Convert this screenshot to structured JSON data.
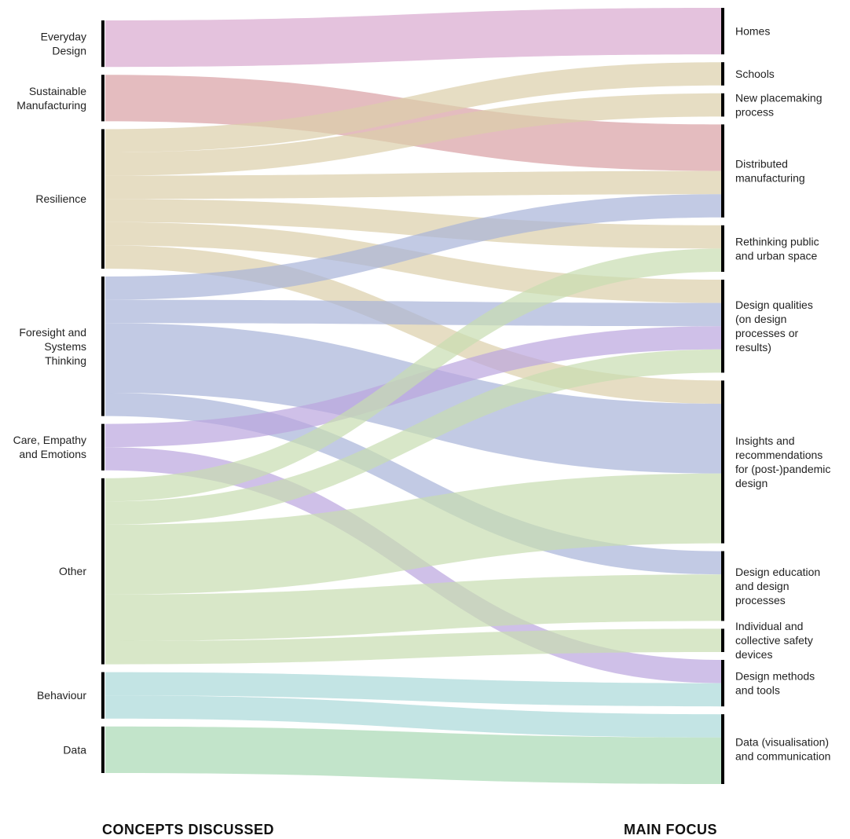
{
  "left_title": "CONCEPTS DISCUSSED",
  "right_title": "MAIN FOCUS",
  "colors": {
    "Everyday Design": "#d9a8cf",
    "Sustainable Manufacturing": "#d9a0a4",
    "Resilience": "#dccfaa",
    "Foresight and Systems Thinking": "#a8b3d9",
    "Care, Empathy and Emotions": "#bba5de",
    "Other": "#c7ddb0",
    "Behaviour": "#a9d9d9",
    "Data": "#a8d9b3"
  },
  "left_nodes": [
    {
      "id": "Everyday Design",
      "lines": [
        "Everyday",
        "Design"
      ]
    },
    {
      "id": "Sustainable Manufacturing",
      "lines": [
        "Sustainable",
        "Manufacturing"
      ]
    },
    {
      "id": "Resilience",
      "lines": [
        "Resilience"
      ]
    },
    {
      "id": "Foresight and Systems Thinking",
      "lines": [
        "Foresight and",
        "Systems",
        "Thinking"
      ]
    },
    {
      "id": "Care, Empathy and Emotions",
      "lines": [
        "Care, Empathy",
        "and Emotions"
      ]
    },
    {
      "id": "Other",
      "lines": [
        "Other"
      ]
    },
    {
      "id": "Behaviour",
      "lines": [
        "Behaviour"
      ]
    },
    {
      "id": "Data",
      "lines": [
        "Data"
      ]
    }
  ],
  "right_nodes": [
    {
      "id": "Homes",
      "lines": [
        "Homes"
      ]
    },
    {
      "id": "Schools",
      "lines": [
        "Schools"
      ]
    },
    {
      "id": "New placemaking process",
      "lines": [
        "New placemaking",
        "process"
      ]
    },
    {
      "id": "Distributed manufacturing",
      "lines": [
        "Distributed",
        "manufacturing"
      ]
    },
    {
      "id": "Rethinking public and urban space",
      "lines": [
        "Rethinking public",
        "and urban space"
      ]
    },
    {
      "id": "Design qualities",
      "lines": [
        "Design qualities",
        "(on design",
        "processes or",
        "results)"
      ]
    },
    {
      "id": "Insights and recommendations",
      "lines": [
        "Insights and",
        "recommendations",
        "for (post-)pandemic",
        "design"
      ]
    },
    {
      "id": "Design education and design processes",
      "lines": [
        "Design education",
        "and design",
        "processes"
      ]
    },
    {
      "id": "Individual and collective safety devices",
      "lines": [
        "Individual and",
        "collective safety",
        "devices"
      ]
    },
    {
      "id": "Design methods and tools",
      "lines": [
        "Design methods",
        "and tools"
      ]
    },
    {
      "id": "Data (visualisation) and communication",
      "lines": [
        "Data (visualisation)",
        "and communication"
      ]
    }
  ],
  "flows": [
    {
      "source": "Everyday Design",
      "target": "Homes",
      "value": 2
    },
    {
      "source": "Sustainable Manufacturing",
      "target": "Distributed manufacturing",
      "value": 2
    },
    {
      "source": "Resilience",
      "target": "Schools",
      "value": 1
    },
    {
      "source": "Resilience",
      "target": "New placemaking process",
      "value": 1
    },
    {
      "source": "Resilience",
      "target": "Distributed manufacturing",
      "value": 1
    },
    {
      "source": "Resilience",
      "target": "Rethinking public and urban space",
      "value": 1
    },
    {
      "source": "Resilience",
      "target": "Design qualities",
      "value": 1
    },
    {
      "source": "Resilience",
      "target": "Insights and recommendations",
      "value": 1
    },
    {
      "source": "Foresight and Systems Thinking",
      "target": "Distributed manufacturing",
      "value": 1
    },
    {
      "source": "Foresight and Systems Thinking",
      "target": "Design qualities",
      "value": 1
    },
    {
      "source": "Foresight and Systems Thinking",
      "target": "Insights and recommendations",
      "value": 3
    },
    {
      "source": "Foresight and Systems Thinking",
      "target": "Design education and design processes",
      "value": 1
    },
    {
      "source": "Care, Empathy and Emotions",
      "target": "Design qualities",
      "value": 1
    },
    {
      "source": "Care, Empathy and Emotions",
      "target": "Design methods and tools",
      "value": 1
    },
    {
      "source": "Other",
      "target": "Rethinking public and urban space",
      "value": 1
    },
    {
      "source": "Other",
      "target": "Design qualities",
      "value": 1
    },
    {
      "source": "Other",
      "target": "Insights and recommendations",
      "value": 3
    },
    {
      "source": "Other",
      "target": "Design education and design processes",
      "value": 2
    },
    {
      "source": "Other",
      "target": "Individual and collective safety devices",
      "value": 1
    },
    {
      "source": "Behaviour",
      "target": "Design methods and tools",
      "value": 1
    },
    {
      "source": "Behaviour",
      "target": "Data (visualisation) and communication",
      "value": 1
    },
    {
      "source": "Data",
      "target": "Data (visualisation) and communication",
      "value": 2
    }
  ]
}
